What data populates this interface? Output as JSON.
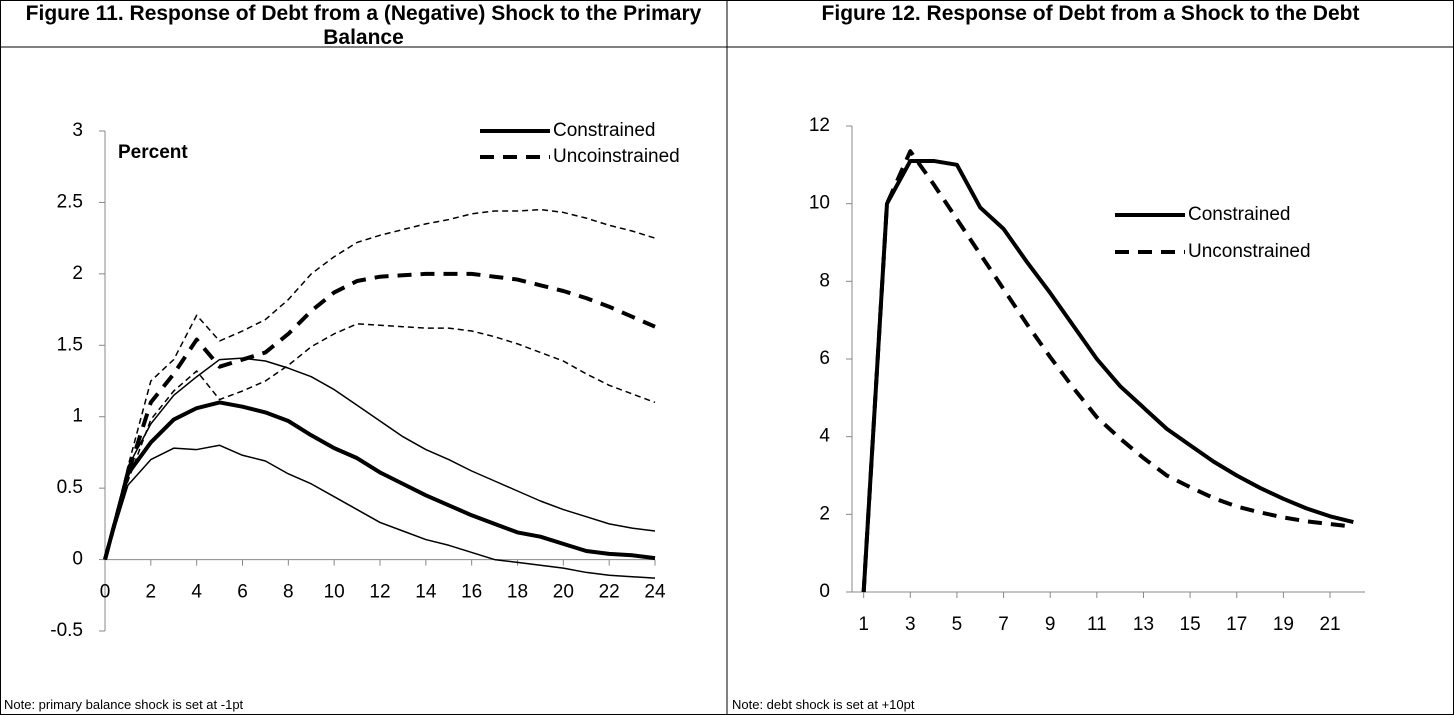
{
  "chart_data": [
    {
      "type": "line",
      "title": "Figure 11. Response of Debt from a (Negative) Shock to the Primary Balance",
      "note": "Note: primary balance shock is set at -1pt",
      "annotation": "Percent",
      "x": [
        0,
        1,
        2,
        3,
        4,
        5,
        6,
        7,
        8,
        9,
        10,
        11,
        12,
        13,
        14,
        15,
        16,
        17,
        18,
        19,
        20,
        21,
        22,
        23,
        24
      ],
      "xlim": [
        0,
        24
      ],
      "xticks": [
        0,
        2,
        4,
        6,
        8,
        10,
        12,
        14,
        16,
        18,
        20,
        22,
        24
      ],
      "ylim": [
        -0.5,
        3
      ],
      "yticks": [
        -0.5,
        0,
        0.5,
        1,
        1.5,
        2,
        2.5,
        3
      ],
      "legend": "upper right",
      "series": [
        {
          "name": "Constrained",
          "color": "#000000",
          "line_width": 4,
          "dashed": false,
          "values": [
            0,
            0.6,
            0.82,
            0.98,
            1.06,
            1.1,
            1.07,
            1.03,
            0.97,
            0.87,
            0.78,
            0.71,
            0.61,
            0.53,
            0.45,
            0.38,
            0.31,
            0.25,
            0.19,
            0.16,
            0.11,
            0.06,
            0.04,
            0.03,
            0.01
          ]
        },
        {
          "name": "Uncoinstrained",
          "color": "#000000",
          "line_width": 4,
          "dashed": true,
          "values": [
            0,
            0.6,
            1.1,
            1.3,
            1.54,
            1.35,
            1.4,
            1.45,
            1.58,
            1.74,
            1.87,
            1.95,
            1.98,
            1.99,
            2.0,
            2.0,
            2.0,
            1.98,
            1.96,
            1.92,
            1.88,
            1.83,
            1.77,
            1.7,
            1.63
          ]
        },
        {
          "color": "#000000",
          "line_width": 1.5,
          "dashed": false,
          "values": [
            0,
            0.65,
            0.95,
            1.15,
            1.28,
            1.4,
            1.41,
            1.39,
            1.34,
            1.28,
            1.19,
            1.08,
            0.97,
            0.86,
            0.77,
            0.7,
            0.62,
            0.55,
            0.48,
            0.41,
            0.35,
            0.3,
            0.25,
            0.22,
            0.2
          ]
        },
        {
          "color": "#000000",
          "line_width": 1.5,
          "dashed": false,
          "values": [
            0,
            0.52,
            0.7,
            0.78,
            0.77,
            0.8,
            0.73,
            0.69,
            0.6,
            0.53,
            0.44,
            0.35,
            0.26,
            0.2,
            0.14,
            0.1,
            0.05,
            0,
            -0.02,
            -0.04,
            -0.06,
            -0.09,
            -0.11,
            -0.12,
            -0.13
          ]
        },
        {
          "color": "#000000",
          "line_width": 1.5,
          "dashed": true,
          "values": [
            0,
            0.65,
            1.25,
            1.4,
            1.71,
            1.53,
            1.6,
            1.68,
            1.82,
            2.0,
            2.12,
            2.22,
            2.27,
            2.31,
            2.35,
            2.38,
            2.42,
            2.44,
            2.44,
            2.45,
            2.43,
            2.39,
            2.34,
            2.3,
            2.25
          ]
        },
        {
          "color": "#000000",
          "line_width": 1.5,
          "dashed": true,
          "values": [
            0,
            0.55,
            0.98,
            1.18,
            1.32,
            1.12,
            1.18,
            1.25,
            1.36,
            1.49,
            1.58,
            1.65,
            1.64,
            1.63,
            1.62,
            1.62,
            1.6,
            1.56,
            1.51,
            1.45,
            1.39,
            1.3,
            1.22,
            1.16,
            1.1
          ]
        }
      ]
    },
    {
      "type": "line",
      "title": "Figure 12. Response of Debt from a Shock to the Debt",
      "note": "Note: debt shock is set at +10pt",
      "x": [
        1,
        2,
        3,
        4,
        5,
        6,
        7,
        8,
        9,
        10,
        11,
        12,
        13,
        14,
        15,
        16,
        17,
        18,
        19,
        20,
        21,
        22
      ],
      "xlim": [
        0.5,
        22.5
      ],
      "xticks": [
        1,
        3,
        5,
        7,
        9,
        11,
        13,
        15,
        17,
        19,
        21
      ],
      "ylim": [
        0,
        12
      ],
      "yticks": [
        0,
        2,
        4,
        6,
        8,
        10,
        12
      ],
      "legend": "upper right",
      "series": [
        {
          "name": "Constrained",
          "color": "#000000",
          "line_width": 4,
          "dashed": false,
          "values": [
            0,
            10,
            11.1,
            11.1,
            11.0,
            9.9,
            9.35,
            8.5,
            7.7,
            6.85,
            6.0,
            5.3,
            4.75,
            4.2,
            3.78,
            3.36,
            3.0,
            2.68,
            2.4,
            2.15,
            1.95,
            1.8
          ]
        },
        {
          "name": "Unconstrained",
          "color": "#000000",
          "line_width": 4,
          "dashed": true,
          "values": [
            0,
            10,
            11.35,
            10.5,
            9.6,
            8.7,
            7.8,
            6.9,
            6.05,
            5.25,
            4.5,
            3.95,
            3.45,
            3.0,
            2.7,
            2.42,
            2.2,
            2.05,
            1.92,
            1.82,
            1.75,
            1.68
          ]
        }
      ]
    }
  ]
}
